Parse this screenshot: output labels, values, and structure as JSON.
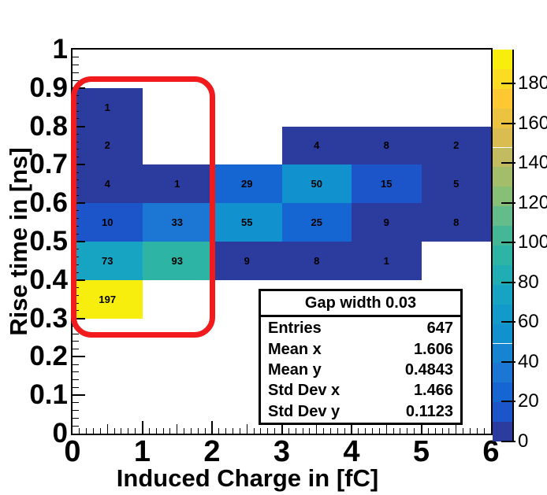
{
  "axes": {
    "x": {
      "title": "Induced Charge in [fC]",
      "tick_labels": [
        "0",
        "1",
        "2",
        "3",
        "4",
        "5",
        "6"
      ]
    },
    "y": {
      "title": "Rise time in [ns]",
      "tick_labels": [
        "0",
        "0.1",
        "0.2",
        "0.3",
        "0.4",
        "0.5",
        "0.6",
        "0.7",
        "0.8",
        "0.9",
        "1"
      ]
    },
    "z": {
      "tick_labels": [
        "0",
        "20",
        "40",
        "60",
        "80",
        "100",
        "120",
        "140",
        "160",
        "180"
      ]
    }
  },
  "stats_box": {
    "title": "Gap width 0.03",
    "rows": [
      {
        "label": "Entries",
        "value": "647"
      },
      {
        "label": "Mean x",
        "value": "1.606"
      },
      {
        "label": "Mean y",
        "value": "0.4843"
      },
      {
        "label": "Std Dev x",
        "value": "1.466"
      },
      {
        "label": "Std Dev y",
        "value": "0.1123"
      }
    ]
  },
  "chart_data": {
    "type": "heatmap",
    "title": "",
    "xlabel": "Induced Charge in [fC]",
    "ylabel": "Rise time in [ns]",
    "xlim": [
      0,
      6
    ],
    "ylim": [
      0,
      1
    ],
    "zlim": [
      0,
      197
    ],
    "x_bin_width": 1,
    "y_bin_width": 0.1,
    "grid": false,
    "legend_position": "right-colorbar",
    "n_color_levels": 20,
    "colorbar_ticks": [
      0,
      20,
      40,
      60,
      80,
      100,
      120,
      140,
      160,
      180
    ],
    "cells": [
      {
        "x": 0,
        "y": 0.8,
        "value": 1
      },
      {
        "x": 0,
        "y": 0.7,
        "value": 2
      },
      {
        "x": 3,
        "y": 0.7,
        "value": 4
      },
      {
        "x": 4,
        "y": 0.7,
        "value": 8
      },
      {
        "x": 5,
        "y": 0.7,
        "value": 2
      },
      {
        "x": 0,
        "y": 0.6,
        "value": 4
      },
      {
        "x": 1,
        "y": 0.6,
        "value": 1
      },
      {
        "x": 2,
        "y": 0.6,
        "value": 29
      },
      {
        "x": 3,
        "y": 0.6,
        "value": 50
      },
      {
        "x": 4,
        "y": 0.6,
        "value": 15
      },
      {
        "x": 5,
        "y": 0.6,
        "value": 5
      },
      {
        "x": 0,
        "y": 0.5,
        "value": 10
      },
      {
        "x": 1,
        "y": 0.5,
        "value": 33
      },
      {
        "x": 2,
        "y": 0.5,
        "value": 55
      },
      {
        "x": 3,
        "y": 0.5,
        "value": 25
      },
      {
        "x": 4,
        "y": 0.5,
        "value": 9
      },
      {
        "x": 5,
        "y": 0.5,
        "value": 8
      },
      {
        "x": 0,
        "y": 0.4,
        "value": 73
      },
      {
        "x": 1,
        "y": 0.4,
        "value": 93
      },
      {
        "x": 2,
        "y": 0.4,
        "value": 9
      },
      {
        "x": 3,
        "y": 0.4,
        "value": 8
      },
      {
        "x": 4,
        "y": 0.4,
        "value": 1
      },
      {
        "x": 0,
        "y": 0.3,
        "value": 197
      }
    ],
    "annotation": {
      "type": "red-rounded-rect-highlight",
      "x_range": [
        0,
        2.05
      ],
      "y_range": [
        0.26,
        0.93
      ]
    }
  },
  "colors": {
    "palette": [
      "#2b3b9e",
      "#1c55c9",
      "#1565d2",
      "#1b76d4",
      "#1684d1",
      "#1191ce",
      "#129bca",
      "#17a4c2",
      "#20adb4",
      "#2db4a5",
      "#45b796",
      "#63bc89",
      "#87bf77",
      "#a4bd6b",
      "#c2bb5f",
      "#dabd51",
      "#ecc341",
      "#fec832",
      "#fcdc23",
      "#f7ee0e"
    ],
    "annotation_red": "#f11a1d",
    "frame": "#000000",
    "background": "#ffffff",
    "text": "#000000"
  }
}
